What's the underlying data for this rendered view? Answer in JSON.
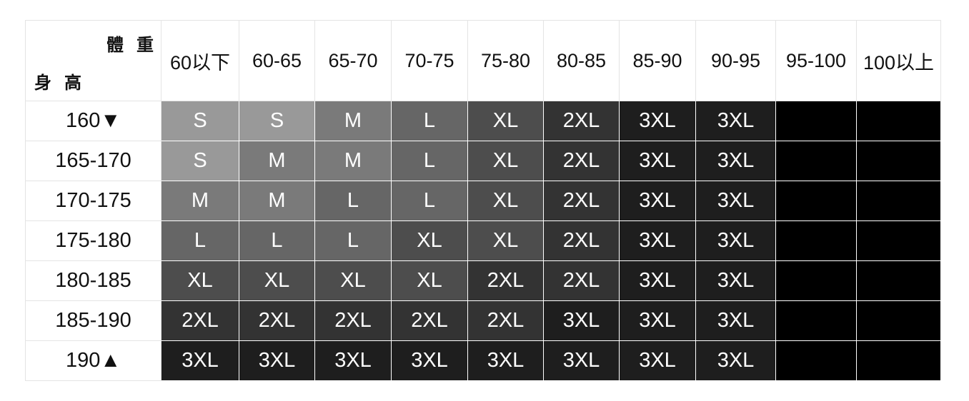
{
  "corner": {
    "weight_label": "體重",
    "height_label": "身高"
  },
  "weight_headers": [
    "60以下",
    "60-65",
    "65-70",
    "70-75",
    "75-80",
    "80-85",
    "85-90",
    "90-95",
    "95-100",
    "100以上"
  ],
  "size_colors": {
    "S": "#999999",
    "M": "#7a7a7a",
    "L": "#666666",
    "XL": "#4d4d4d",
    "2XL": "#333333",
    "3XL": "#1e1e1e",
    "": "#000000"
  },
  "rows": [
    {
      "height": "160▼",
      "sizes": [
        "S",
        "S",
        "M",
        "L",
        "XL",
        "2XL",
        "3XL",
        "3XL",
        "",
        ""
      ]
    },
    {
      "height": "165-170",
      "sizes": [
        "S",
        "M",
        "M",
        "L",
        "XL",
        "2XL",
        "3XL",
        "3XL",
        "",
        ""
      ]
    },
    {
      "height": "170-175",
      "sizes": [
        "M",
        "M",
        "L",
        "L",
        "XL",
        "2XL",
        "3XL",
        "3XL",
        "",
        ""
      ]
    },
    {
      "height": "175-180",
      "sizes": [
        "L",
        "L",
        "L",
        "XL",
        "XL",
        "2XL",
        "3XL",
        "3XL",
        "",
        ""
      ]
    },
    {
      "height": "180-185",
      "sizes": [
        "XL",
        "XL",
        "XL",
        "XL",
        "2XL",
        "2XL",
        "3XL",
        "3XL",
        "",
        ""
      ]
    },
    {
      "height": "185-190",
      "sizes": [
        "2XL",
        "2XL",
        "2XL",
        "2XL",
        "2XL",
        "3XL",
        "3XL",
        "3XL",
        "",
        ""
      ]
    },
    {
      "height": "190▲",
      "sizes": [
        "3XL",
        "3XL",
        "3XL",
        "3XL",
        "3XL",
        "3XL",
        "3XL",
        "3XL",
        "",
        ""
      ]
    }
  ]
}
